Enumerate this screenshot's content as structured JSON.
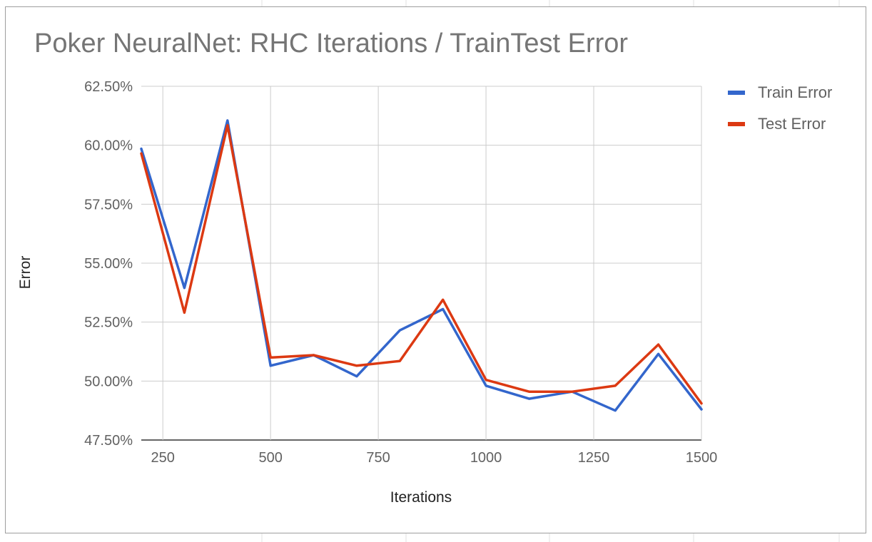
{
  "chart_data": {
    "type": "line",
    "title": "Poker NeuralNet: RHC Iterations / TrainTest Error",
    "xlabel": "Iterations",
    "ylabel": "Error",
    "x": [
      200,
      300,
      400,
      500,
      600,
      700,
      800,
      900,
      1000,
      1100,
      1200,
      1300,
      1400,
      1500
    ],
    "xlim": [
      200,
      1500
    ],
    "ylim": [
      47.5,
      62.5
    ],
    "x_ticks": [
      "250",
      "500",
      "750",
      "1000",
      "1250",
      "1500"
    ],
    "x_tick_values": [
      250,
      500,
      750,
      1000,
      1250,
      1500
    ],
    "y_ticks": [
      "47.50%",
      "50.00%",
      "52.50%",
      "55.00%",
      "57.50%",
      "60.00%",
      "62.50%"
    ],
    "y_tick_values": [
      47.5,
      50,
      52.5,
      55,
      57.5,
      60,
      62.5
    ],
    "x_gridlines": [
      250,
      500,
      750,
      1000,
      1250,
      1500
    ],
    "grid": true,
    "legend_position": "right",
    "series": [
      {
        "name": "Train Error",
        "color": "#3366cc",
        "values": [
          59.85,
          53.95,
          61.05,
          50.65,
          51.1,
          50.2,
          52.15,
          53.05,
          49.8,
          49.25,
          49.55,
          48.75,
          51.15,
          48.8
        ]
      },
      {
        "name": "Test Error",
        "color": "#dc3912",
        "values": [
          59.65,
          52.9,
          60.85,
          51.0,
          51.1,
          50.65,
          50.85,
          53.45,
          50.05,
          49.55,
          49.55,
          49.8,
          51.55,
          49.05
        ]
      }
    ]
  }
}
